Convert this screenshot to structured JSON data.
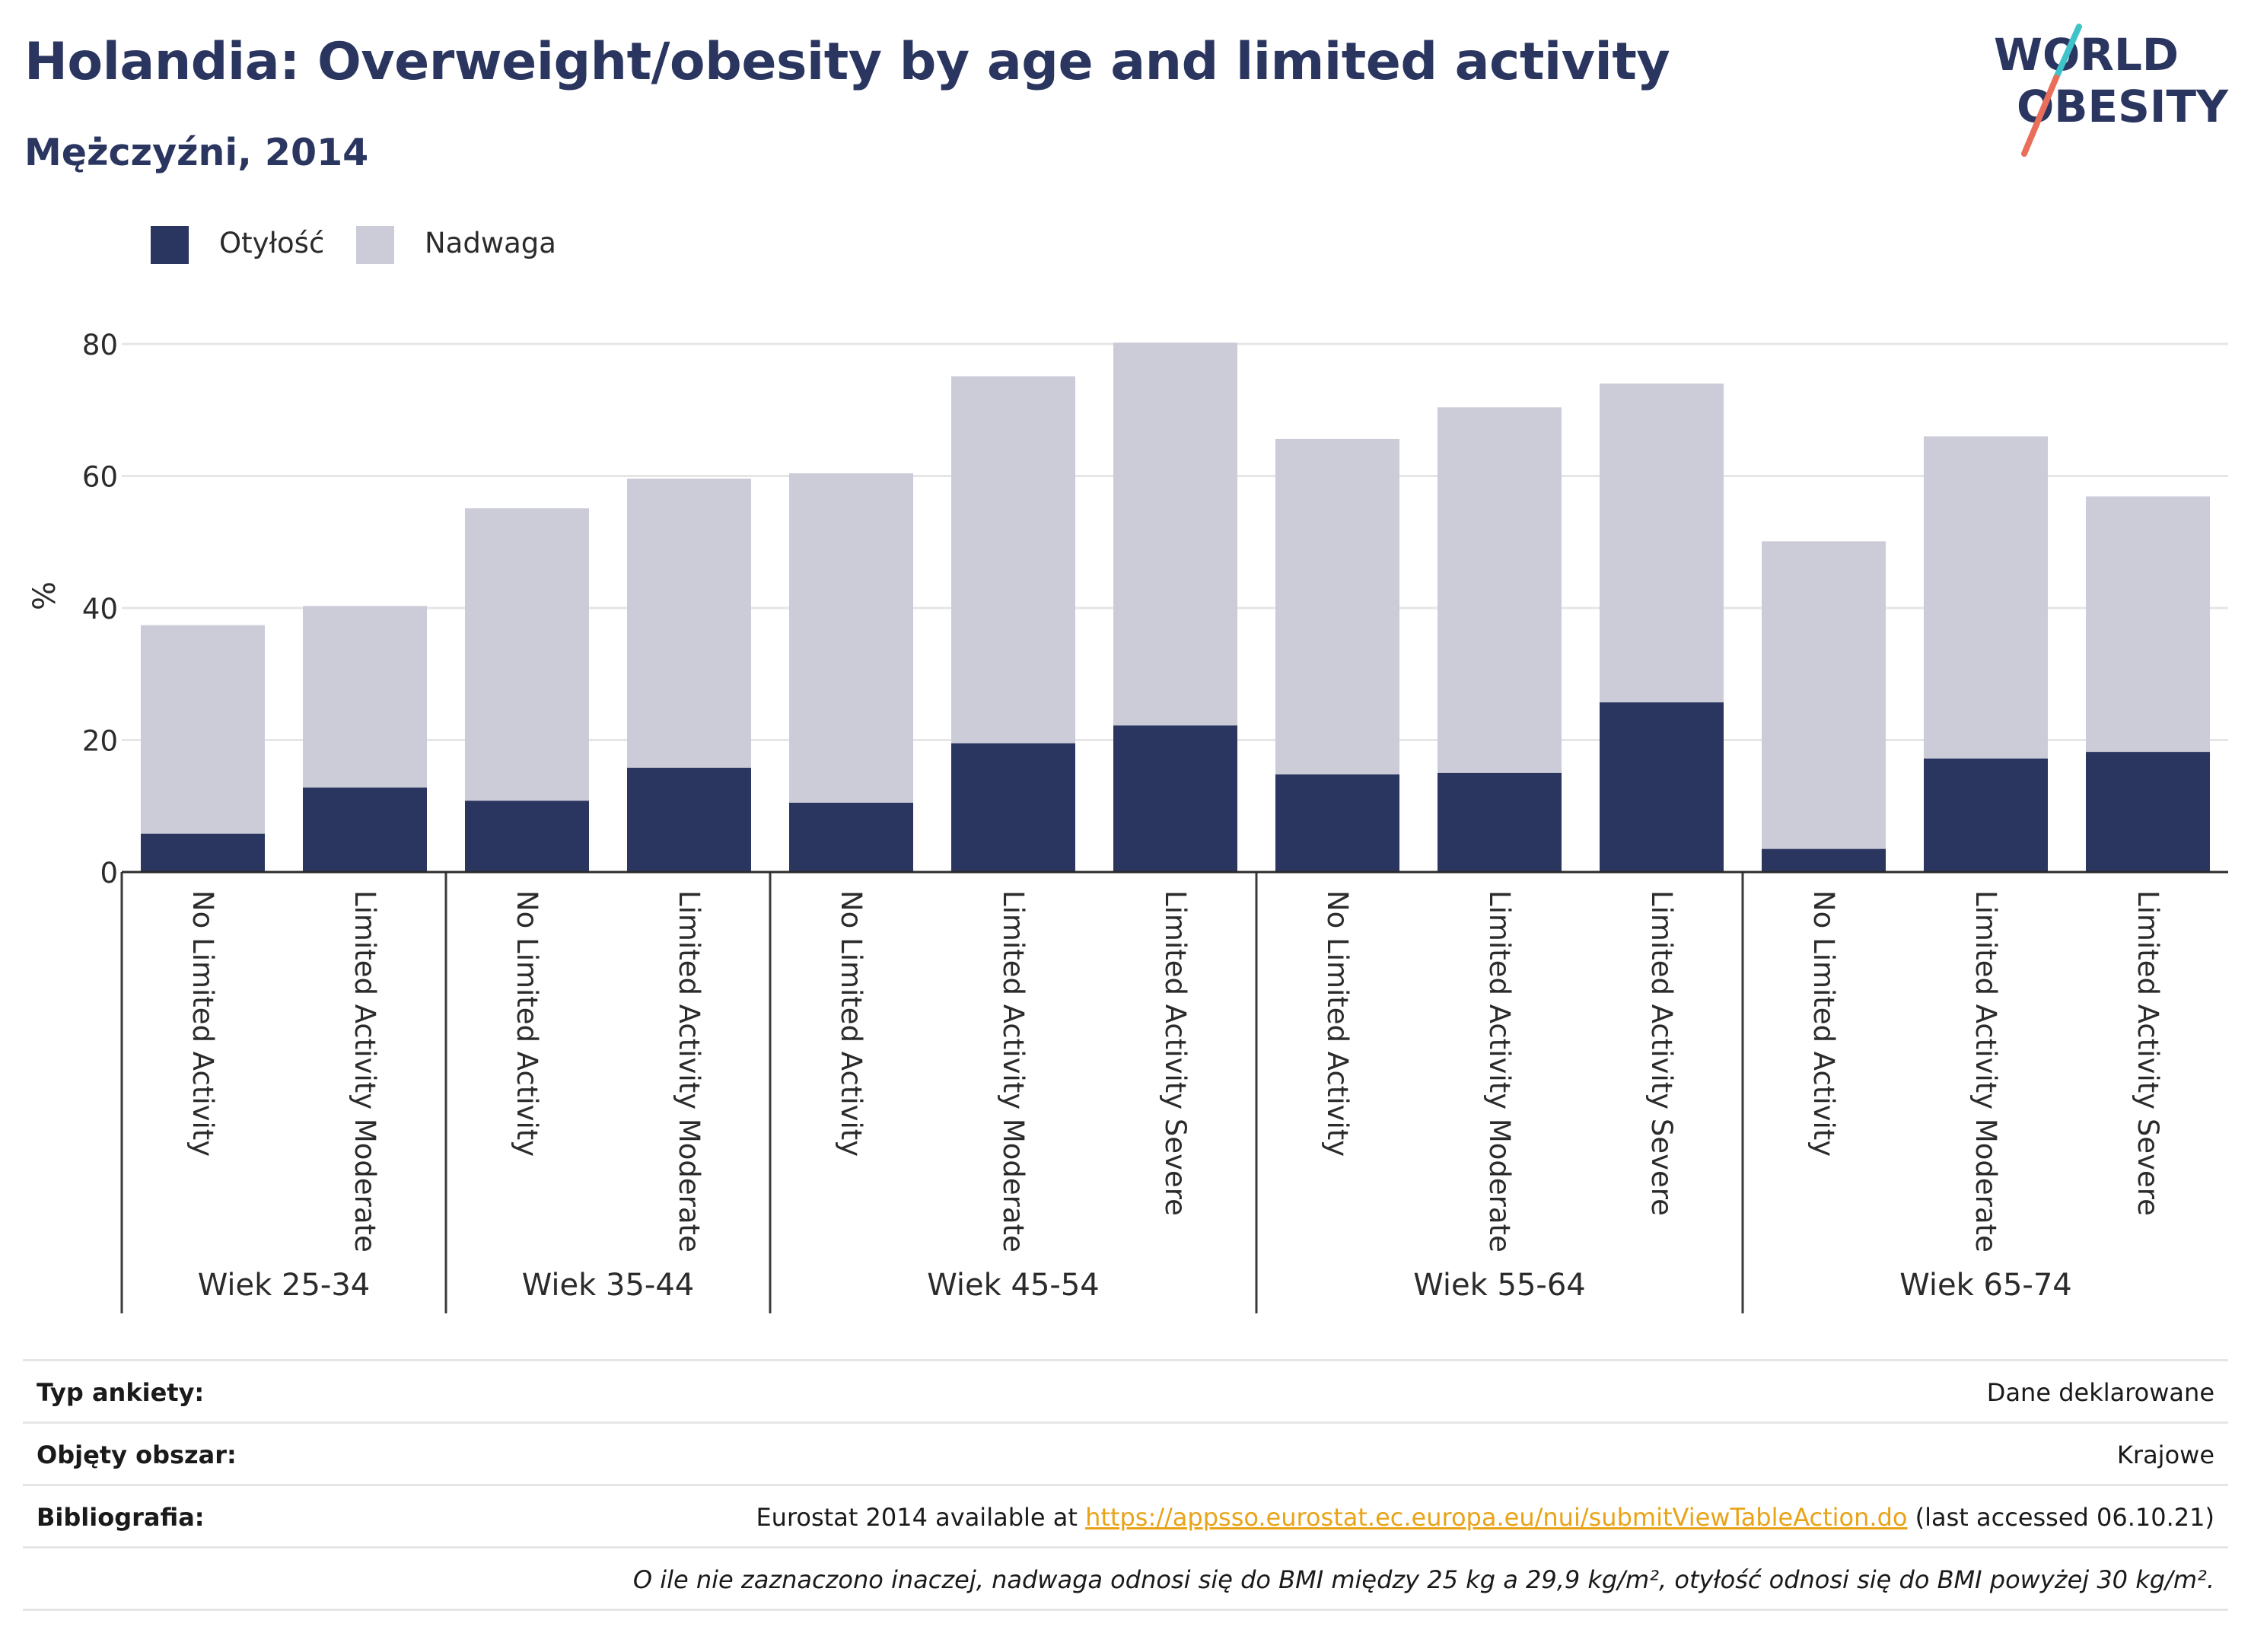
{
  "header": {
    "title": "Holandia: Overweight/obesity by age and limited activity",
    "subtitle": "Mężczyźni, 2014"
  },
  "logo": {
    "line1": "WORLD",
    "line2": "OBESITY"
  },
  "colors": {
    "obesity": "#2a3560",
    "overweight": "#cbccd8",
    "title": "#2a3560",
    "link": "#e8a317",
    "logo_teal": "#3ec3c9",
    "logo_coral": "#ea6f5a",
    "grid": "#e6e6e6"
  },
  "legend": {
    "items": [
      {
        "label": "Otyłość",
        "color": "#2a3560"
      },
      {
        "label": "Nadwaga",
        "color": "#cbccd8"
      }
    ]
  },
  "chart_data": {
    "type": "bar",
    "stacked": true,
    "ylabel": "%",
    "ylim": [
      0,
      80
    ],
    "yticks": [
      0,
      20,
      40,
      60,
      80
    ],
    "grid": true,
    "legend_position": "top-left",
    "groups": [
      {
        "label": "Wiek 25-34",
        "categories": [
          "No Limited Activity",
          "Limited Activity Moderate"
        ]
      },
      {
        "label": "Wiek 35-44",
        "categories": [
          "No Limited Activity",
          "Limited Activity Moderate"
        ]
      },
      {
        "label": "Wiek 45-54",
        "categories": [
          "No Limited Activity",
          "Limited Activity Moderate",
          "Limited Activity Severe"
        ]
      },
      {
        "label": "Wiek 55-64",
        "categories": [
          "No Limited Activity",
          "Limited Activity Moderate",
          "Limited Activity Severe"
        ]
      },
      {
        "label": "Wiek 65-74",
        "categories": [
          "No Limited Activity",
          "Limited Activity Moderate",
          "Limited Activity Severe"
        ]
      }
    ],
    "series": [
      {
        "name": "Otyłość",
        "values": [
          5.8,
          12.8,
          10.8,
          15.8,
          10.5,
          19.5,
          22.2,
          14.8,
          15.0,
          25.7,
          3.5,
          17.2,
          18.2
        ]
      },
      {
        "name": "Nadwaga",
        "values": [
          31.6,
          27.5,
          44.3,
          43.8,
          49.9,
          55.6,
          58.0,
          50.8,
          55.4,
          48.3,
          46.6,
          48.8,
          38.7
        ]
      }
    ]
  },
  "meta": {
    "rows": [
      {
        "key": "Typ ankiety:",
        "value": "Dane deklarowane"
      },
      {
        "key": "Objęty obszar:",
        "value": "Krajowe"
      }
    ],
    "bibliography": {
      "key": "Bibliografia:",
      "prefix": "Eurostat 2014 available at ",
      "link": "https://appsso.eurostat.ec.europa.eu/nui/submitViewTableAction.do",
      "suffix": " (last accessed 06.10.21)"
    },
    "note": "O ile nie zaznaczono inaczej, nadwaga odnosi się do BMI między 25 kg a 29,9 kg/m², otyłość odnosi się do BMI powyżej 30 kg/m²."
  }
}
